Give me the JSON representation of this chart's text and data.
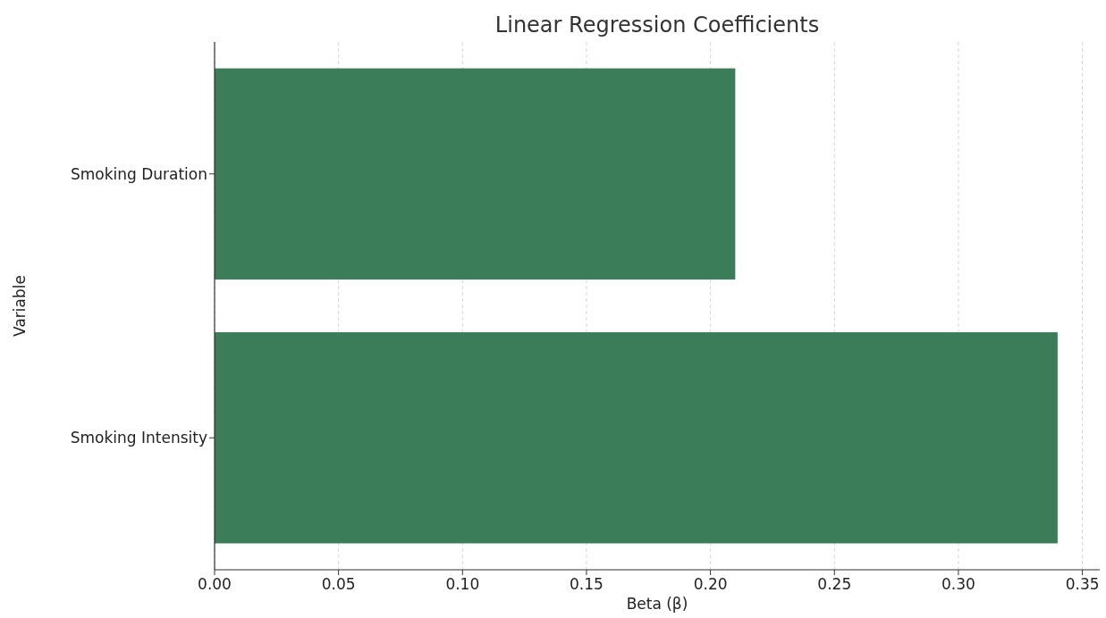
{
  "chart_data": {
    "type": "bar",
    "orientation": "horizontal",
    "title": "Linear Regression Coefficients",
    "xlabel": "Beta (β)",
    "ylabel": "Variable",
    "categories": [
      "Smoking Duration",
      "Smoking Intensity"
    ],
    "values": [
      0.21,
      0.34
    ],
    "color": "#3b7d58",
    "xlim": [
      0,
      0.357
    ],
    "xticks": [
      {
        "value": 0,
        "label": "0.00"
      },
      {
        "value": 0.05,
        "label": "0.05"
      },
      {
        "value": 0.1,
        "label": "0.10"
      },
      {
        "value": 0.15,
        "label": "0.15"
      },
      {
        "value": 0.2,
        "label": "0.20"
      },
      {
        "value": 0.25,
        "label": "0.25"
      },
      {
        "value": 0.3,
        "label": "0.30"
      },
      {
        "value": 0.35,
        "label": "0.35"
      }
    ],
    "grid": "x"
  }
}
